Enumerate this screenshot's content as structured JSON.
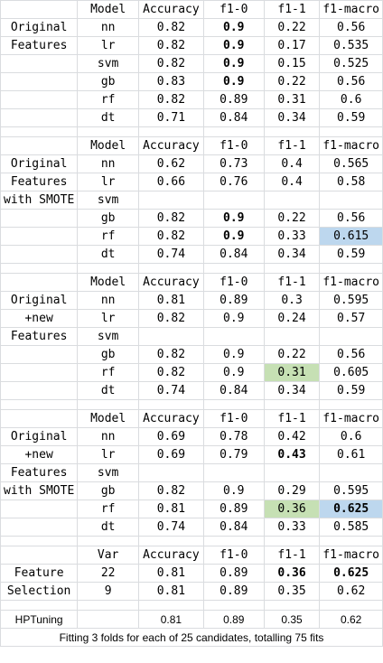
{
  "colors": {
    "highlight_blue": "#bdd7ee",
    "highlight_green": "#c6e0b4",
    "gridline": "#dadcdf"
  },
  "blocks": [
    {
      "header": [
        "",
        "Model",
        "Accuracy",
        "f1-0",
        "f1-1",
        "f1-macro"
      ],
      "rows": [
        [
          "Original",
          "nn",
          "0.82",
          "0.9",
          "0.22",
          "0.56"
        ],
        [
          "Features",
          "lr",
          "0.82",
          "0.9",
          "0.17",
          "0.535"
        ],
        [
          "",
          "svm",
          "0.82",
          "0.9",
          "0.15",
          "0.525"
        ],
        [
          "",
          "gb",
          "0.83",
          "0.9",
          "0.22",
          "0.56"
        ],
        [
          "",
          "rf",
          "0.82",
          "0.89",
          "0.31",
          "0.6"
        ],
        [
          "",
          "dt",
          "0.71",
          "0.84",
          "0.34",
          "0.59"
        ]
      ]
    },
    {
      "header": [
        "",
        "Model",
        "Accuracy",
        "f1-0",
        "f1-1",
        "f1-macro"
      ],
      "rows": [
        [
          "Original",
          "nn",
          "0.62",
          "0.73",
          "0.4",
          "0.565"
        ],
        [
          "Features",
          "lr",
          "0.66",
          "0.76",
          "0.4",
          "0.58"
        ],
        [
          "with SMOTE",
          "svm",
          "",
          "",
          "",
          ""
        ],
        [
          "",
          "gb",
          "0.82",
          "0.9",
          "0.22",
          "0.56"
        ],
        [
          "",
          "rf",
          "0.82",
          "0.9",
          "0.33",
          "0.615"
        ],
        [
          "",
          "dt",
          "0.74",
          "0.84",
          "0.34",
          "0.59"
        ]
      ]
    },
    {
      "header": [
        "",
        "Model",
        "Accuracy",
        "f1-0",
        "f1-1",
        "f1-macro"
      ],
      "rows": [
        [
          "Original",
          "nn",
          "0.81",
          "0.89",
          "0.3",
          "0.595"
        ],
        [
          "+new",
          "lr",
          "0.82",
          "0.9",
          "0.24",
          "0.57"
        ],
        [
          "Features",
          "svm",
          "",
          "",
          "",
          ""
        ],
        [
          "",
          "gb",
          "0.82",
          "0.9",
          "0.22",
          "0.56"
        ],
        [
          "",
          "rf",
          "0.82",
          "0.9",
          "0.31",
          "0.605"
        ],
        [
          "",
          "dt",
          "0.74",
          "0.84",
          "0.34",
          "0.59"
        ]
      ]
    },
    {
      "header": [
        "",
        "Model",
        "Accuracy",
        "f1-0",
        "f1-1",
        "f1-macro"
      ],
      "rows": [
        [
          "Original",
          "nn",
          "0.69",
          "0.78",
          "0.42",
          "0.6"
        ],
        [
          "+new",
          "lr",
          "0.69",
          "0.79",
          "0.43",
          "0.61"
        ],
        [
          "Features",
          "svm",
          "",
          "",
          "",
          ""
        ],
        [
          "with SMOTE",
          "gb",
          "0.82",
          "0.9",
          "0.29",
          "0.595"
        ],
        [
          "",
          "rf",
          "0.81",
          "0.89",
          "0.36",
          "0.625"
        ],
        [
          "",
          "dt",
          "0.74",
          "0.84",
          "0.33",
          "0.585"
        ]
      ]
    },
    {
      "header": [
        "",
        "Var",
        "Accuracy",
        "f1-0",
        "f1-1",
        "f1-macro"
      ],
      "rows": [
        [
          "Feature",
          "22",
          "0.81",
          "0.89",
          "0.36",
          "0.625"
        ],
        [
          "Selection",
          "9",
          "0.81",
          "0.89",
          "0.35",
          "0.62"
        ]
      ]
    }
  ],
  "hptuning": {
    "label": "HPTuning",
    "values": [
      "0.81",
      "0.89",
      "0.35",
      "0.62"
    ],
    "note": "Fitting 3 folds for each of 25 candidates, totalling 75 fits"
  }
}
